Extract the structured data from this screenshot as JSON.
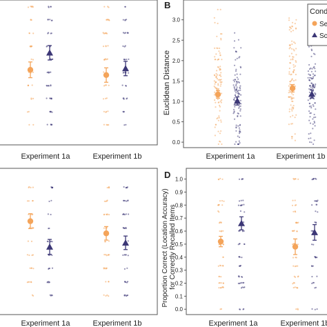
{
  "colors": {
    "series_a": "#f4a45a",
    "series_b": "#3c3776",
    "frame": "#555555",
    "text": "#222222"
  },
  "legend": {
    "title": "Condi",
    "entries": [
      "Se",
      "Sc"
    ]
  },
  "chart_data": [
    {
      "id": "A",
      "panel_label": "",
      "type": "scatter",
      "categories": [
        "Experiment 1a",
        "Experiment 1b"
      ],
      "ylabel": "",
      "ylim": [
        0,
        10
      ],
      "yticks": [],
      "grid": false,
      "dot_levels": [
        1,
        2,
        3,
        4,
        5,
        6,
        7,
        8,
        9,
        10
      ],
      "series": [
        {
          "values": [
            5.2,
            4.8
          ],
          "error": [
            0.6,
            0.55
          ],
          "marker": "circle"
        },
        {
          "values": [
            6.5,
            5.3
          ],
          "error": [
            0.55,
            0.55
          ],
          "marker": "triangle"
        }
      ]
    },
    {
      "id": "B",
      "panel_label": "B",
      "type": "scatter",
      "categories": [
        "Experiment 1a",
        "Experiment 1b"
      ],
      "ylabel": "Euclidean Distance",
      "ylim": [
        -0.1,
        3.35
      ],
      "yticks": [
        "0.0",
        "0.5",
        "1.0",
        "1.5",
        "2.0",
        "2.5",
        "3.0"
      ],
      "ytick_values": [
        0,
        0.5,
        1,
        1.5,
        2,
        2.5,
        3
      ],
      "grid": false,
      "legend_position": "top-right",
      "series": [
        {
          "values": [
            1.17,
            1.32
          ],
          "error": [
            0.09,
            0.09
          ],
          "marker": "circle"
        },
        {
          "values": [
            1.01,
            1.18
          ],
          "error": [
            0.1,
            0.1
          ],
          "marker": "triangle"
        }
      ]
    },
    {
      "id": "C",
      "panel_label": "",
      "type": "scatter",
      "categories": [
        "Experiment 1a",
        "Experiment 1b"
      ],
      "ylabel": "",
      "ylim": [
        0,
        10
      ],
      "yticks": [],
      "grid": false,
      "dot_levels": [
        1,
        2,
        3,
        4,
        5,
        6,
        7,
        8,
        9
      ],
      "series": [
        {
          "values": [
            6.5,
            5.6
          ],
          "error": [
            0.55,
            0.5
          ],
          "marker": "circle"
        },
        {
          "values": [
            4.6,
            4.9
          ],
          "error": [
            0.55,
            0.5
          ],
          "marker": "triangle"
        }
      ]
    },
    {
      "id": "D",
      "panel_label": "D",
      "type": "scatter",
      "categories": [
        "Experiment 1a",
        "Experiment 1b"
      ],
      "ylabel": "Proportion Correct (Location Accuracy) for Correctly Recalled Items",
      "ylim": [
        -0.02,
        1.04
      ],
      "yticks": [
        "0.0",
        "0.1",
        "0.2",
        "0.3",
        "0.4",
        "0.5",
        "0.6",
        "0.7",
        "0.8",
        "0.9",
        "1.0"
      ],
      "ytick_values": [
        0,
        0.1,
        0.2,
        0.3,
        0.4,
        0.5,
        0.6,
        0.7,
        0.8,
        0.9,
        1.0
      ],
      "grid": false,
      "dot_levels": [
        0,
        0.167,
        0.2,
        0.25,
        0.333,
        0.4,
        0.5,
        0.6,
        0.667,
        0.75,
        0.8,
        0.833,
        1.0
      ],
      "series": [
        {
          "values": [
            0.52,
            0.48
          ],
          "error": [
            0.04,
            0.06
          ],
          "marker": "circle"
        },
        {
          "values": [
            0.66,
            0.59
          ],
          "error": [
            0.05,
            0.06
          ],
          "marker": "triangle"
        }
      ]
    }
  ]
}
